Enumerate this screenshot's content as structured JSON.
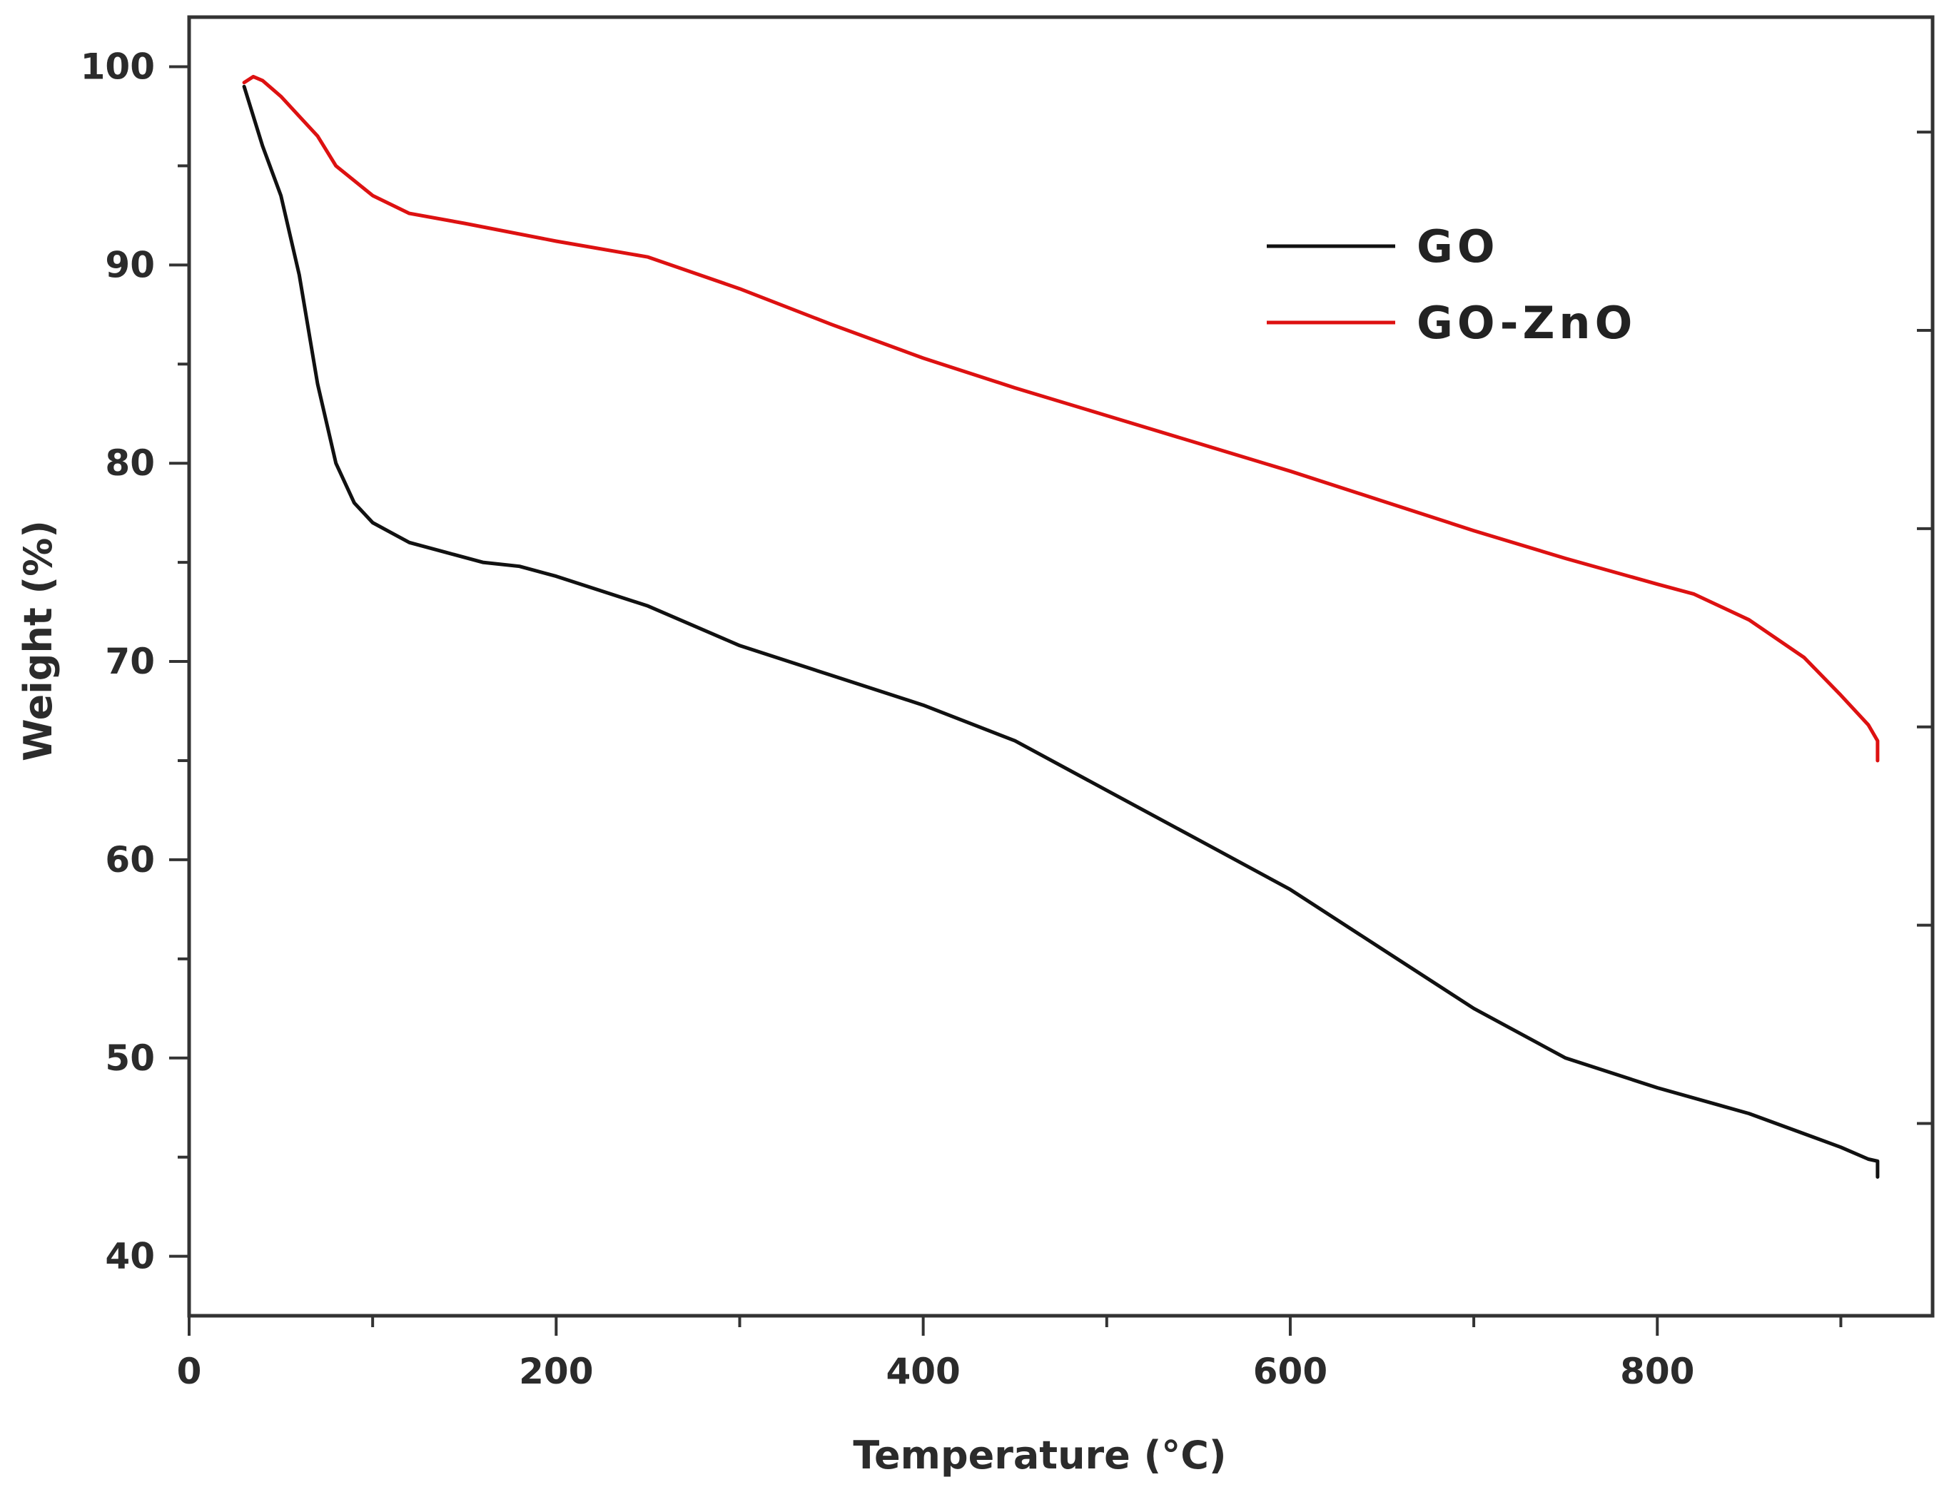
{
  "chart_data": {
    "type": "line",
    "title": "",
    "xlabel": "Temperature (°C)",
    "ylabel": "Weight (%)",
    "xlim": [
      0,
      950
    ],
    "ylim": [
      37,
      102.5
    ],
    "xticks": [
      0,
      200,
      400,
      600,
      800
    ],
    "yticks": [
      40,
      50,
      60,
      70,
      80,
      90,
      100
    ],
    "xtick_labels": [
      "0",
      "200",
      "400",
      "600",
      "800"
    ],
    "ytick_labels": [
      "40",
      "50",
      "60",
      "70",
      "80",
      "90",
      "100"
    ],
    "grid": false,
    "legend_position": "top-right",
    "series": [
      {
        "name": "GO",
        "color": "#111111",
        "x": [
          30,
          40,
          50,
          60,
          70,
          80,
          90,
          100,
          110,
          120,
          140,
          160,
          180,
          200,
          250,
          300,
          350,
          400,
          450,
          500,
          550,
          600,
          650,
          700,
          750,
          800,
          850,
          900,
          915,
          920,
          920
        ],
        "y": [
          99.0,
          96.0,
          93.5,
          89.5,
          84.0,
          80.0,
          78.0,
          77.0,
          76.5,
          76.0,
          75.5,
          75.0,
          74.8,
          74.3,
          72.8,
          70.8,
          69.3,
          67.8,
          66.0,
          63.5,
          61.0,
          58.5,
          55.5,
          52.5,
          50.0,
          48.5,
          47.2,
          45.5,
          44.9,
          44.8,
          44.0
        ]
      },
      {
        "name": "GO-ZnO",
        "color": "#dd1111",
        "x": [
          30,
          35,
          40,
          50,
          60,
          70,
          80,
          100,
          120,
          150,
          200,
          250,
          300,
          350,
          400,
          450,
          500,
          550,
          600,
          650,
          700,
          750,
          800,
          820,
          850,
          880,
          900,
          915,
          920,
          920
        ],
        "y": [
          99.2,
          99.5,
          99.3,
          98.5,
          97.5,
          96.5,
          95.0,
          93.5,
          92.6,
          92.1,
          91.2,
          90.4,
          88.8,
          87.0,
          85.3,
          83.8,
          82.4,
          81.0,
          79.6,
          78.1,
          76.6,
          75.2,
          73.9,
          73.4,
          72.1,
          70.2,
          68.3,
          66.8,
          66.0,
          65.0
        ]
      }
    ]
  }
}
